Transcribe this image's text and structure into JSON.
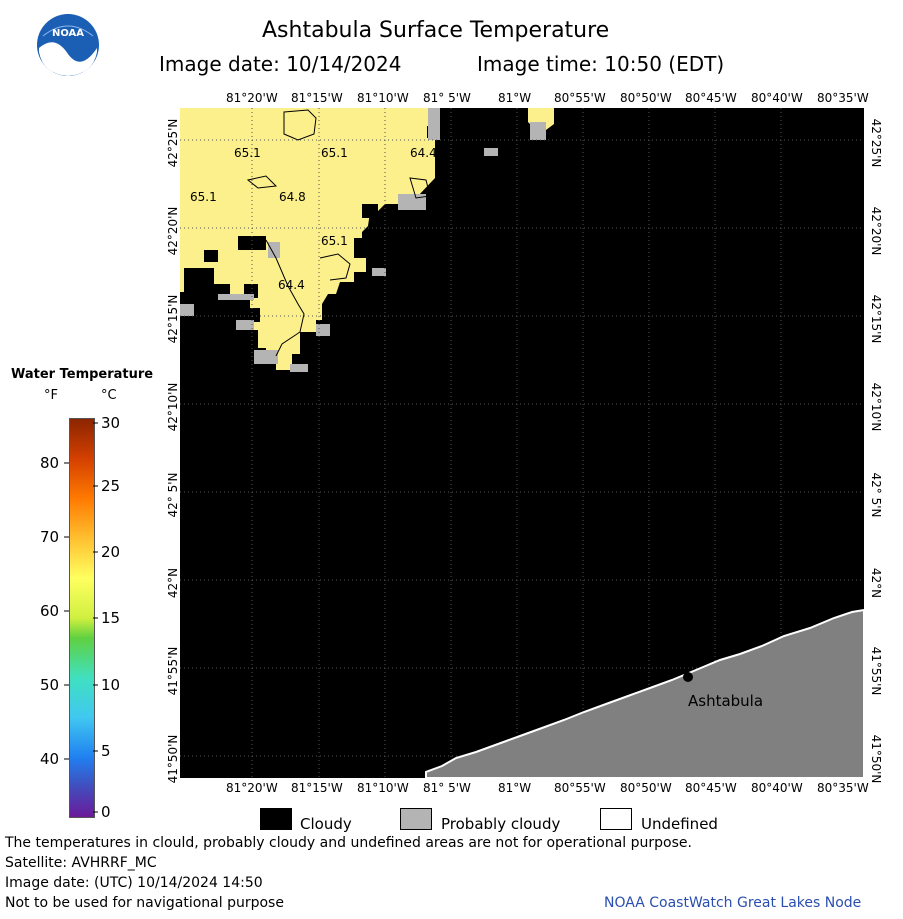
{
  "header": {
    "title": "Ashtabula Surface Temperature",
    "image_date": "Image date: 10/14/2024",
    "image_time": "Image time: 10:50 (EDT)"
  },
  "logo": {
    "text": "NOAA"
  },
  "map": {
    "lon_ticks": [
      "81°20'W",
      "81°15'W",
      "81°10'W",
      "81° 5'W",
      "81°W",
      "80°55'W",
      "80°50'W",
      "80°45'W",
      "80°40'W",
      "80°35'W"
    ],
    "lat_ticks": [
      "42°25'N",
      "42°20'N",
      "42°15'N",
      "42°10'N",
      "42° 5'N",
      "42°N",
      "41°55'N",
      "41°50'N"
    ],
    "temp_labels": [
      "65.1",
      "65.1",
      "64.4",
      "65.1",
      "64.8",
      "65.1",
      "64.4"
    ],
    "city": "Ashtabula",
    "colors": {
      "cloud": "#000000",
      "water": "#fcf08c",
      "probably_cloudy": "#b4b4b4",
      "land": "#808080"
    }
  },
  "legend": {
    "title": "Water Temperature",
    "f_header": "°F",
    "c_header": "°C",
    "f_values": [
      "80",
      "70",
      "60",
      "50",
      "40"
    ],
    "c_values": [
      "30",
      "25",
      "20",
      "15",
      "10",
      "5",
      "0"
    ]
  },
  "key": {
    "cloudy": "Cloudy",
    "probably_cloudy": "Probably cloudy",
    "undefined": "Undefined"
  },
  "footer": {
    "note": "The temperatures in clould, probably cloudy and undefined areas are not for operational purpose.",
    "satellite": "Satellite: AVHRRF_MC",
    "utc_date": "Image date: (UTC) 10/14/2024  14:50",
    "nav": "Not to be used for navigational purpose",
    "credit": "NOAA CoastWatch Great Lakes Node"
  }
}
